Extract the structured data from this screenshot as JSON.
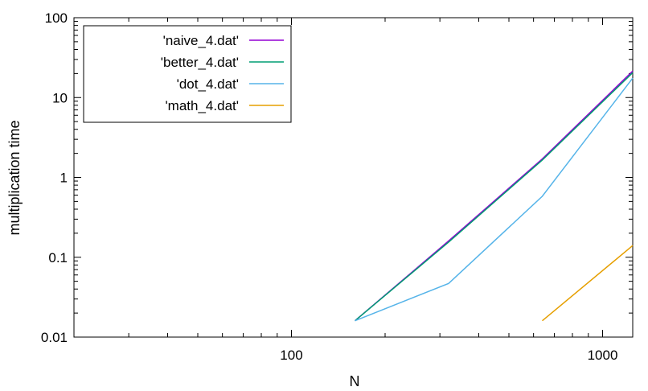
{
  "chart_data": {
    "type": "line",
    "xlabel": "N",
    "ylabel": "multiplication time",
    "x_scale": "log",
    "y_scale": "log",
    "xlim": [
      20,
      1250
    ],
    "ylim": [
      0.01,
      100
    ],
    "x_ticks": [
      {
        "value": 100,
        "label": "100"
      },
      {
        "value": 1000,
        "label": "1000"
      }
    ],
    "y_ticks": [
      {
        "value": 0.01,
        "label": "0.01"
      },
      {
        "value": 0.1,
        "label": "0.1"
      },
      {
        "value": 1,
        "label": "1"
      },
      {
        "value": 10,
        "label": "10"
      },
      {
        "value": 100,
        "label": "100"
      }
    ],
    "grid": false,
    "legend_position": "top-left",
    "series": [
      {
        "name": "'naive_4.dat'",
        "color": "#9400d3",
        "x": [
          160,
          320,
          640,
          1250
        ],
        "y": [
          0.016,
          0.16,
          1.7,
          21.5
        ]
      },
      {
        "name": "'better_4.dat'",
        "color": "#009e73",
        "x": [
          160,
          320,
          640,
          1250
        ],
        "y": [
          0.016,
          0.155,
          1.65,
          20.5
        ]
      },
      {
        "name": "'dot_4.dat'",
        "color": "#56b4e9",
        "x": [
          160,
          320,
          640,
          1250
        ],
        "y": [
          0.016,
          0.047,
          0.58,
          17.5
        ]
      },
      {
        "name": "'math_4.dat'",
        "color": "#e69f00",
        "x": [
          640,
          1250
        ],
        "y": [
          0.016,
          0.14
        ]
      }
    ]
  }
}
